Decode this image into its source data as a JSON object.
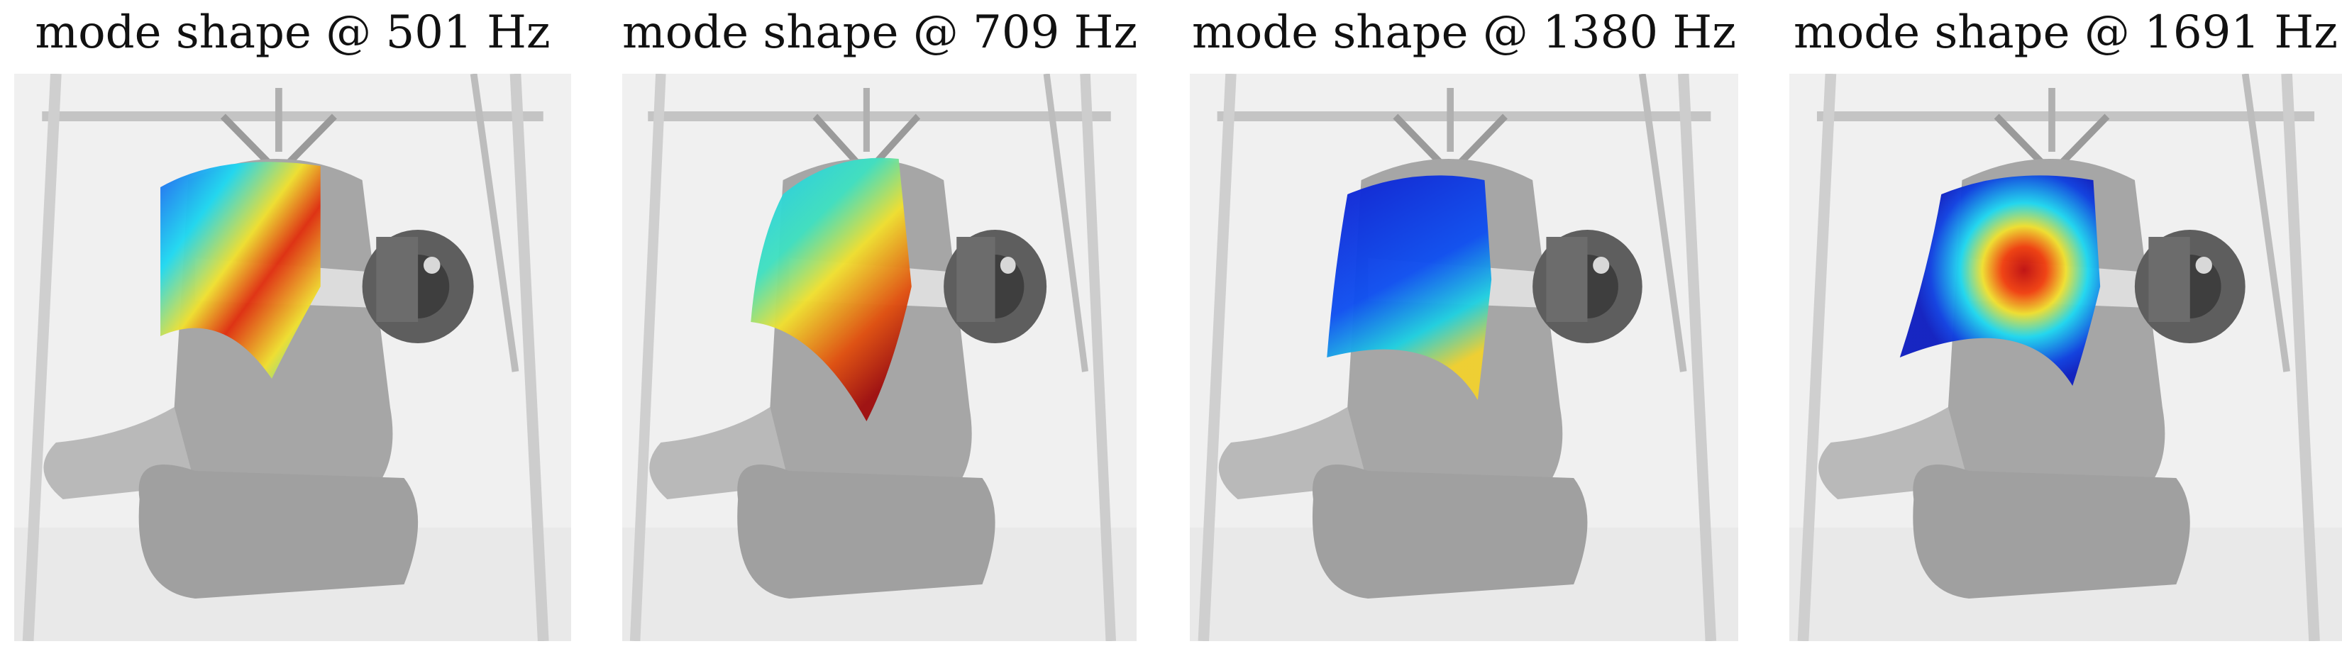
{
  "panels": [
    {
      "title": "mode shape @ 501 Hz"
    },
    {
      "title": "mode shape @ 709 Hz"
    },
    {
      "title": "mode shape @ 1380 Hz"
    },
    {
      "title": "mode shape @ 1691 Hz"
    }
  ],
  "colors": {
    "background_photo": "#f0f0f0",
    "bell_dark": "#7f7f7f",
    "bell_mid": "#a9a9a9",
    "jet_blue": "#1030e0",
    "jet_cyan": "#20d8f0",
    "jet_yellow": "#f0e030",
    "jet_red": "#d01010"
  }
}
